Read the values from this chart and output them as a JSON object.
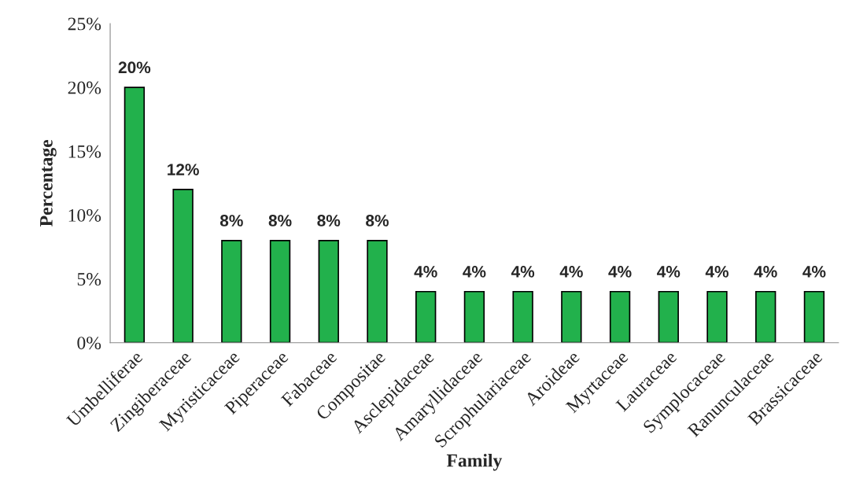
{
  "chart_data": {
    "type": "bar",
    "xlabel": "Family",
    "ylabel": "Percentage",
    "categories": [
      "Umbelliferae",
      "Zingiberaceae",
      "Myristicaceae",
      "Piperaceae",
      "Fabaceae",
      "Compositae",
      "Asclepidaceae",
      "Amaryllidaceae",
      "Scrophulariaceae",
      "Aroideae",
      "Myrtaceae",
      "Lauraceae",
      "Symplocaceae",
      "Ranunculaceae",
      "Brassicaceae"
    ],
    "values": [
      20,
      12,
      8,
      8,
      8,
      8,
      4,
      4,
      4,
      4,
      4,
      4,
      4,
      4,
      4
    ],
    "value_labels": [
      "20%",
      "12%",
      "8%",
      "8%",
      "8%",
      "8%",
      "4%",
      "4%",
      "4%",
      "4%",
      "4%",
      "4%",
      "4%",
      "4%",
      "4%"
    ],
    "color": "#22b14c",
    "ylim": [
      0,
      25
    ],
    "yticks": [
      {
        "value": 0,
        "label": "0%"
      },
      {
        "value": 5,
        "label": "5%"
      },
      {
        "value": 10,
        "label": "10%"
      },
      {
        "value": 15,
        "label": "15%"
      },
      {
        "value": 20,
        "label": "20%"
      },
      {
        "value": 25,
        "label": "25%"
      }
    ],
    "grid": false,
    "legend": false
  }
}
